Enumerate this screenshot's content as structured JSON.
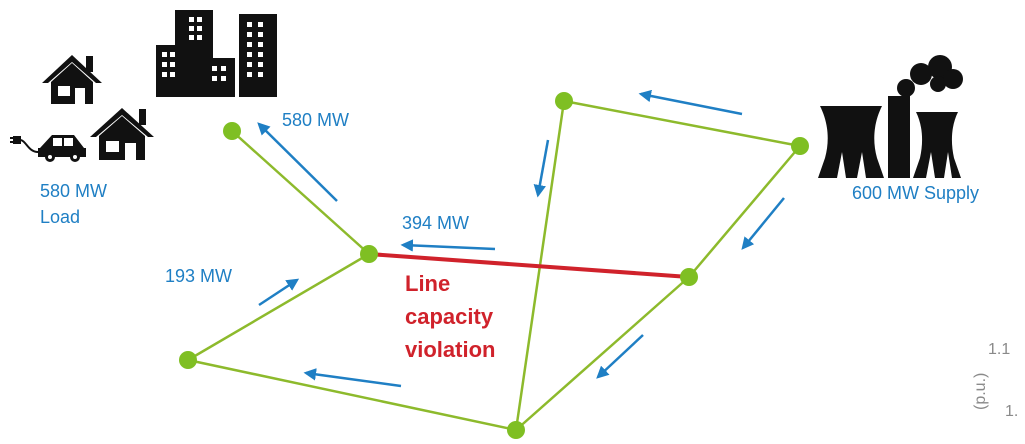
{
  "labels": {
    "top_flow": "580 MW",
    "load_value": "580 MW",
    "load_word": "Load",
    "mid_flow": "394 MW",
    "left_flow": "193 MW",
    "supply": "600 MW Supply"
  },
  "violation": {
    "line1": "Line",
    "line2": "capacity",
    "line3": "violation"
  },
  "axis_cutoff": {
    "tick1": "1.1",
    "tick2": "1.",
    "ylabel_fragment": "(p.u.)"
  },
  "colors": {
    "line": "#8dba2c",
    "node": "#7fbf23",
    "violation_line": "#d0222b",
    "arrow": "#1f7fc4",
    "icon": "#111111"
  },
  "icons": [
    "house-icon",
    "buildings-icon",
    "car-charging-icon",
    "power-plant-icon"
  ]
}
